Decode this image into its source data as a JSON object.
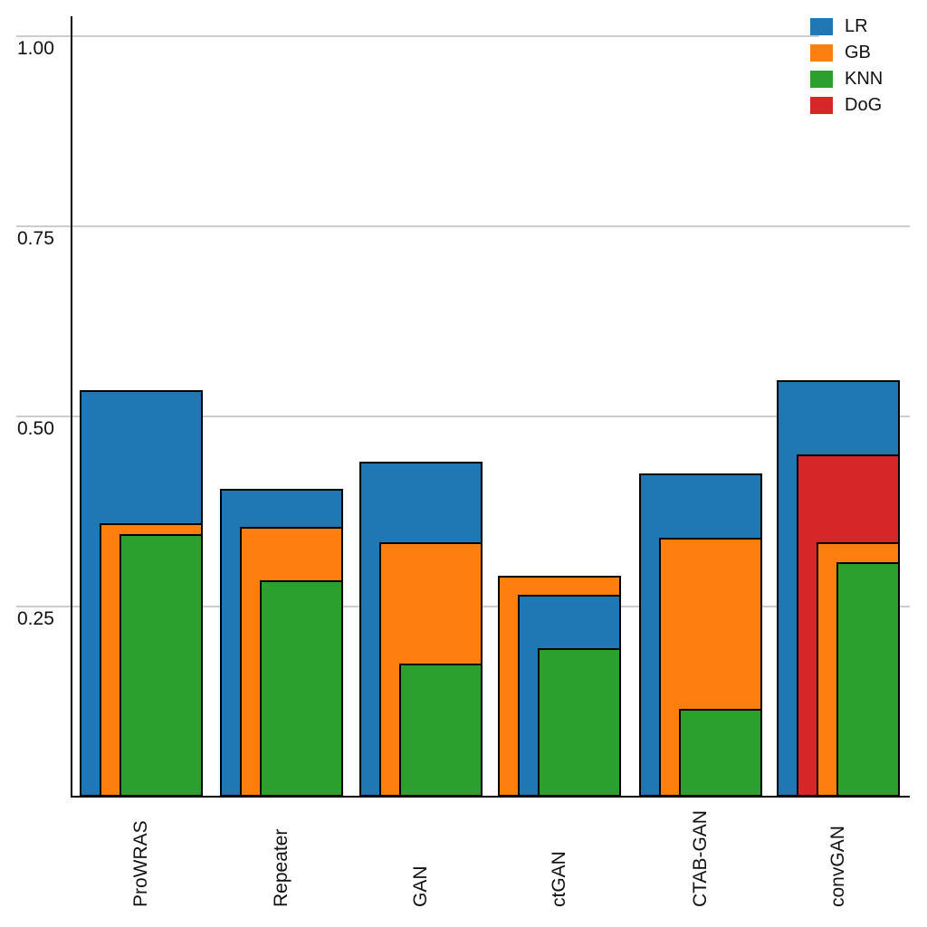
{
  "chart_data": {
    "type": "bar",
    "variant": "overlapping-nested-bars",
    "title": "",
    "xlabel": "",
    "ylabel": "",
    "categories": [
      "ProWRAS",
      "Repeater",
      "GAN",
      "ctGAN",
      "CTAB-GAN",
      "convGAN"
    ],
    "series": [
      {
        "name": "LR",
        "color": "#1f77b4",
        "values": [
          0.535,
          0.405,
          0.44,
          0.265,
          0.425,
          0.548
        ]
      },
      {
        "name": "GB",
        "color": "#ff7f0e",
        "values": [
          0.36,
          0.355,
          0.335,
          0.29,
          0.34,
          0.335
        ]
      },
      {
        "name": "KNN",
        "color": "#2ca02c",
        "values": [
          0.345,
          0.285,
          0.175,
          0.195,
          0.115,
          0.308
        ]
      },
      {
        "name": "DoG",
        "color": "#d62728",
        "values": [
          null,
          null,
          null,
          null,
          null,
          0.45
        ]
      }
    ],
    "yticks": [
      1.0,
      0.75,
      0.5,
      0.25
    ],
    "ytick_labels": [
      "1.00",
      "0.75",
      "0.50",
      "0.25"
    ],
    "ylim": [
      0,
      1.026
    ],
    "grid": "horizontal",
    "grid_color": "#cccccc",
    "bar_edge_color": "#000000",
    "background": "#ffffff",
    "legend_position": "top-right"
  },
  "legend": {
    "items": [
      {
        "label": "LR",
        "color": "#1f77b4"
      },
      {
        "label": "GB",
        "color": "#ff7f0e"
      },
      {
        "label": "KNN",
        "color": "#2ca02c"
      },
      {
        "label": "DoG",
        "color": "#d62728"
      }
    ]
  }
}
